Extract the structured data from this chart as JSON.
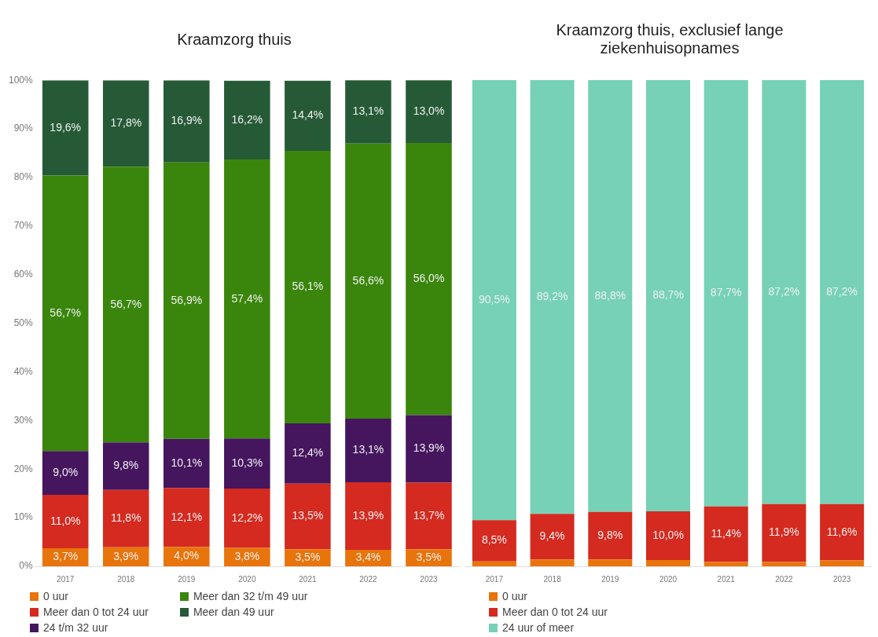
{
  "chart_data": [
    {
      "type": "bar",
      "title": "Kraamzorg thuis",
      "stacked": true,
      "legend": "bottom",
      "grid": false,
      "categories": [
        "2017",
        "2018",
        "2019",
        "2020",
        "2021",
        "2022",
        "2023"
      ],
      "ylim": [
        0,
        100
      ],
      "yticks": [
        {
          "value": 0,
          "label": "0%"
        },
        {
          "value": 10,
          "label": "10%"
        },
        {
          "value": 20,
          "label": "20%"
        },
        {
          "value": 30,
          "label": "30%"
        },
        {
          "value": 40,
          "label": "40%"
        },
        {
          "value": 50,
          "label": "50%"
        },
        {
          "value": 60,
          "label": "60%"
        },
        {
          "value": 70,
          "label": "70%"
        },
        {
          "value": 80,
          "label": "80%"
        },
        {
          "value": 90,
          "label": "90%"
        },
        {
          "value": 100,
          "label": "100%"
        }
      ],
      "series": [
        {
          "name": "0 uur",
          "color": "#e8740c",
          "values": [
            3.7,
            3.9,
            4.0,
            3.8,
            3.5,
            3.4,
            3.5
          ],
          "value_labels": [
            "3,7%",
            "3,9%",
            "4,0%",
            "3,8%",
            "3,5%",
            "3,4%",
            "3,5%"
          ]
        },
        {
          "name": "Meer dan 0 tot 24 uur",
          "color": "#d42a20",
          "values": [
            11.0,
            11.8,
            12.1,
            12.2,
            13.5,
            13.9,
            13.7
          ],
          "value_labels": [
            "11,0%",
            "11,8%",
            "12,1%",
            "12,2%",
            "13,5%",
            "13,9%",
            "13,7%"
          ]
        },
        {
          "name": "24 t/m 32 uur",
          "color": "#45155e",
          "values": [
            9.0,
            9.8,
            10.1,
            10.3,
            12.4,
            13.1,
            13.9
          ],
          "value_labels": [
            "9,0%",
            "9,8%",
            "10,1%",
            "10,3%",
            "12,4%",
            "13,1%",
            "13,9%"
          ]
        },
        {
          "name": "Meer dan 32 t/m 49 uur",
          "color": "#3a860c",
          "values": [
            56.7,
            56.7,
            56.9,
            57.4,
            56.1,
            56.6,
            56.0
          ],
          "value_labels": [
            "56,7%",
            "56,7%",
            "56,9%",
            "57,4%",
            "56,1%",
            "56,6%",
            "56,0%"
          ]
        },
        {
          "name": "Meer dan 49 uur",
          "color": "#265a37",
          "values": [
            19.6,
            17.8,
            16.9,
            16.2,
            14.4,
            13.1,
            13.0
          ],
          "value_labels": [
            "19,6%",
            "17,8%",
            "16,9%",
            "16,2%",
            "14,4%",
            "13,1%",
            "13,0%"
          ]
        }
      ]
    },
    {
      "type": "bar",
      "title": "Kraamzorg thuis, exclusief lange ziekenhuisopnames",
      "stacked": true,
      "legend": "bottom",
      "grid": false,
      "tick_labels": "x",
      "categories": [
        "2017",
        "2018",
        "2019",
        "2020",
        "2021",
        "2022",
        "2023"
      ],
      "ylim": [
        0,
        100
      ],
      "series": [
        {
          "name": "0 uur",
          "color": "#e8740c",
          "values": [
            1.0,
            1.4,
            1.4,
            1.3,
            0.9,
            0.9,
            1.2
          ]
        },
        {
          "name": "Meer dan 0 tot 24 uur",
          "color": "#d42a20",
          "values": [
            8.5,
            9.4,
            9.8,
            10.0,
            11.4,
            11.9,
            11.6
          ],
          "value_labels": [
            "8,5%",
            "9,4%",
            "9,8%",
            "10,0%",
            "11,4%",
            "11,9%",
            "11,6%"
          ]
        },
        {
          "name": "24 uur of meer",
          "color": "#76d1b6",
          "values": [
            90.5,
            89.2,
            88.8,
            88.7,
            87.7,
            87.2,
            87.2
          ],
          "value_labels": [
            "90,5%",
            "89,2%",
            "88,8%",
            "88,7%",
            "87,7%",
            "87,2%",
            "87,2%"
          ]
        }
      ]
    }
  ]
}
